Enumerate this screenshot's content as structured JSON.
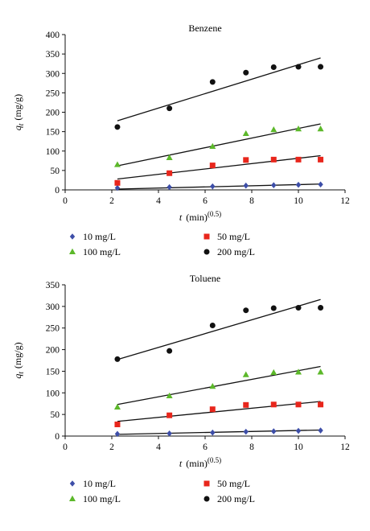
{
  "chart_data": [
    {
      "type": "scatter",
      "title": "Benzene",
      "xlabel_var": "t",
      "xlabel_unit": "(min)",
      "xlabel_exp": "(0.5)",
      "ylabel_var": "q",
      "ylabel_sub": "t",
      "ylabel_unit": "(mg/g)",
      "xlim": [
        0,
        12
      ],
      "ylim": [
        0,
        400
      ],
      "xticks": [
        0,
        2,
        4,
        6,
        8,
        10,
        12
      ],
      "yticks": [
        0,
        50,
        100,
        150,
        200,
        250,
        300,
        350,
        400
      ],
      "legend_placement": "below",
      "series": [
        {
          "name": "10 mg/L",
          "marker": "diamond",
          "color": "#3d4ea8",
          "x": [
            2.24,
            4.47,
            6.32,
            7.75,
            8.94,
            10.0,
            10.95
          ],
          "y": [
            5,
            7,
            9,
            11,
            12,
            13,
            14
          ],
          "fit": [
            [
              2.24,
              2
            ],
            [
              10.95,
              15
            ]
          ]
        },
        {
          "name": "50 mg/L",
          "marker": "square",
          "color": "#e8261c",
          "x": [
            2.24,
            4.47,
            6.32,
            7.75,
            8.94,
            10.0,
            10.95
          ],
          "y": [
            18,
            43,
            63,
            77,
            78,
            78,
            78
          ],
          "fit": [
            [
              2.24,
              28
            ],
            [
              10.95,
              88
            ]
          ]
        },
        {
          "name": "100 mg/L",
          "marker": "triangle",
          "color": "#5cb82a",
          "x": [
            2.24,
            4.47,
            6.32,
            7.75,
            8.94,
            10.0,
            10.95
          ],
          "y": [
            65,
            83,
            112,
            145,
            155,
            157,
            157
          ],
          "fit": [
            [
              2.24,
              62
            ],
            [
              10.95,
              170
            ]
          ]
        },
        {
          "name": "200 mg/L",
          "marker": "circle",
          "color": "#111111",
          "x": [
            2.24,
            4.47,
            6.32,
            7.75,
            8.94,
            10.0,
            10.95
          ],
          "y": [
            162,
            210,
            278,
            302,
            316,
            317,
            317
          ],
          "fit": [
            [
              2.24,
              178
            ],
            [
              10.95,
              340
            ]
          ]
        }
      ]
    },
    {
      "type": "scatter",
      "title": "Toluene",
      "xlabel_var": "t",
      "xlabel_unit": "(min)",
      "xlabel_exp": "(0.5)",
      "ylabel_var": "q",
      "ylabel_sub": "t",
      "ylabel_unit": "(mg/g)",
      "xlim": [
        0,
        12
      ],
      "ylim": [
        0,
        350
      ],
      "xticks": [
        0,
        2,
        4,
        6,
        8,
        10,
        12
      ],
      "yticks": [
        0,
        50,
        100,
        150,
        200,
        250,
        300,
        350
      ],
      "legend_placement": "below",
      "series": [
        {
          "name": "10 mg/L",
          "marker": "diamond",
          "color": "#3d4ea8",
          "x": [
            2.24,
            4.47,
            6.32,
            7.75,
            8.94,
            10.0,
            10.95
          ],
          "y": [
            5,
            6,
            8,
            10,
            11,
            12,
            13
          ],
          "fit": [
            [
              2.24,
              4
            ],
            [
              10.95,
              14
            ]
          ]
        },
        {
          "name": "50 mg/L",
          "marker": "square",
          "color": "#e8261c",
          "x": [
            2.24,
            4.47,
            6.32,
            7.75,
            8.94,
            10.0,
            10.95
          ],
          "y": [
            27,
            48,
            62,
            72,
            73,
            73,
            73
          ],
          "fit": [
            [
              2.24,
              34
            ],
            [
              10.95,
              80
            ]
          ]
        },
        {
          "name": "100 mg/L",
          "marker": "triangle",
          "color": "#5cb82a",
          "x": [
            2.24,
            4.47,
            6.32,
            7.75,
            8.94,
            10.0,
            10.95
          ],
          "y": [
            67,
            93,
            115,
            142,
            147,
            148,
            148
          ],
          "fit": [
            [
              2.24,
              73
            ],
            [
              10.95,
              161
            ]
          ]
        },
        {
          "name": "200 mg/L",
          "marker": "circle",
          "color": "#111111",
          "x": [
            2.24,
            4.47,
            6.32,
            7.75,
            8.94,
            10.0,
            10.95
          ],
          "y": [
            178,
            197,
            256,
            291,
            296,
            297,
            297
          ],
          "fit": [
            [
              2.24,
              177
            ],
            [
              10.95,
              316
            ]
          ]
        }
      ]
    }
  ]
}
